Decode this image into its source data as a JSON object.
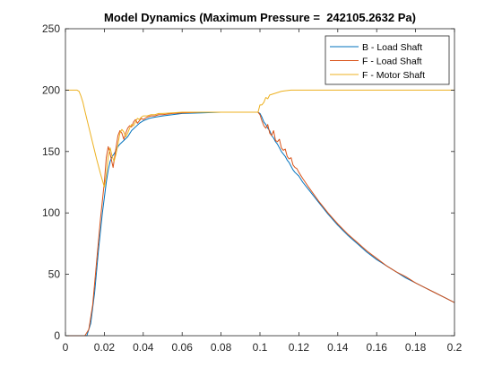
{
  "chart_data": {
    "type": "line",
    "title": "Model Dynamics (Maximum Pressure =  242105.2632 Pa)",
    "xlabel": "",
    "ylabel": "",
    "xlim": [
      0,
      0.2
    ],
    "ylim": [
      0,
      250
    ],
    "xticks": [
      0,
      0.02,
      0.04,
      0.06,
      0.08,
      0.1,
      0.12,
      0.14,
      0.16,
      0.18,
      0.2
    ],
    "xtick_labels": [
      "0",
      "0.02",
      "0.04",
      "0.06",
      "0.08",
      "0.1",
      "0.12",
      "0.14",
      "0.16",
      "0.18",
      "0.2"
    ],
    "yticks": [
      0,
      50,
      100,
      150,
      200,
      250
    ],
    "ytick_labels": [
      "0",
      "50",
      "100",
      "150",
      "200",
      "250"
    ],
    "grid": false,
    "legend": "top-right",
    "series": [
      {
        "name": "B - Load Shaft",
        "color": "#0072BD",
        "x": [
          0,
          0.011,
          0.013,
          0.015,
          0.017,
          0.019,
          0.021,
          0.022,
          0.023,
          0.024,
          0.025,
          0.026,
          0.027,
          0.028,
          0.03,
          0.032,
          0.034,
          0.036,
          0.038,
          0.04,
          0.043,
          0.046,
          0.05,
          0.055,
          0.06,
          0.07,
          0.08,
          0.09,
          0.099,
          0.1,
          0.101,
          0.102,
          0.103,
          0.104,
          0.105,
          0.106,
          0.107,
          0.108,
          0.109,
          0.11,
          0.111,
          0.112,
          0.113,
          0.114,
          0.115,
          0.116,
          0.117,
          0.118,
          0.12,
          0.122,
          0.125,
          0.13,
          0.135,
          0.14,
          0.145,
          0.15,
          0.155,
          0.16,
          0.165,
          0.17,
          0.175,
          0.18,
          0.185,
          0.19,
          0.195,
          0.2
        ],
        "y": [
          0,
          0,
          10,
          35,
          70,
          100,
          125,
          135,
          142,
          146,
          148,
          151,
          154,
          156,
          159,
          162,
          167,
          170,
          173,
          175,
          177,
          178,
          179,
          180,
          181,
          181.5,
          182,
          182,
          182,
          181,
          178,
          174,
          172,
          169,
          167,
          163,
          161,
          158,
          156,
          153,
          150,
          148,
          146,
          143,
          141,
          138,
          135,
          133,
          130,
          125,
          119,
          109,
          99,
          90,
          82,
          75,
          68,
          62,
          57,
          52,
          47,
          43,
          39,
          35,
          31,
          27
        ]
      },
      {
        "name": "F - Load Shaft",
        "color": "#D95319",
        "x": [
          0,
          0.01,
          0.012,
          0.014,
          0.016,
          0.018,
          0.02,
          0.021,
          0.022,
          0.023,
          0.0245,
          0.026,
          0.027,
          0.028,
          0.029,
          0.03,
          0.031,
          0.032,
          0.033,
          0.034,
          0.035,
          0.036,
          0.037,
          0.038,
          0.039,
          0.04,
          0.042,
          0.044,
          0.046,
          0.048,
          0.05,
          0.055,
          0.06,
          0.07,
          0.08,
          0.09,
          0.099,
          0.1,
          0.101,
          0.102,
          0.103,
          0.104,
          0.105,
          0.106,
          0.107,
          0.108,
          0.109,
          0.11,
          0.111,
          0.112,
          0.113,
          0.114,
          0.115,
          0.116,
          0.117,
          0.118,
          0.119,
          0.12,
          0.122,
          0.125,
          0.13,
          0.135,
          0.14,
          0.145,
          0.15,
          0.155,
          0.16,
          0.165,
          0.17,
          0.175,
          0.18,
          0.185,
          0.19,
          0.195,
          0.2
        ],
        "y": [
          0,
          0,
          5,
          25,
          60,
          95,
          125,
          145,
          154,
          148,
          137,
          153,
          163,
          167,
          165,
          160,
          165,
          169,
          171,
          170,
          174,
          176,
          173,
          175,
          177,
          176,
          178,
          179,
          179,
          180,
          180,
          181,
          181.5,
          182,
          182,
          182,
          182,
          180,
          175,
          171,
          169,
          172,
          165,
          163,
          167,
          159,
          158,
          160,
          153,
          151,
          152,
          146,
          144,
          145,
          139,
          137,
          136,
          133,
          128,
          121,
          110,
          100,
          91,
          83,
          76,
          69,
          63,
          57,
          52,
          48,
          43,
          39,
          35,
          31,
          27
        ]
      },
      {
        "name": "F - Motor Shaft",
        "color": "#EDB120",
        "x": [
          0,
          0.006,
          0.007,
          0.008,
          0.009,
          0.01,
          0.012,
          0.014,
          0.016,
          0.018,
          0.02,
          0.021,
          0.022,
          0.023,
          0.024,
          0.025,
          0.026,
          0.027,
          0.028,
          0.029,
          0.03,
          0.031,
          0.032,
          0.033,
          0.034,
          0.035,
          0.036,
          0.037,
          0.038,
          0.039,
          0.04,
          0.042,
          0.044,
          0.046,
          0.048,
          0.05,
          0.055,
          0.06,
          0.07,
          0.08,
          0.09,
          0.099,
          0.1,
          0.101,
          0.102,
          0.103,
          0.104,
          0.105,
          0.107,
          0.109,
          0.111,
          0.113,
          0.116,
          0.12,
          0.125,
          0.13,
          0.14,
          0.15,
          0.16,
          0.18,
          0.2
        ],
        "y": [
          200,
          200,
          199,
          195,
          190,
          183,
          170,
          157,
          144,
          132,
          121,
          131,
          146,
          153,
          146,
          142,
          148,
          156,
          165,
          168,
          166,
          162,
          165,
          169,
          172,
          171,
          174,
          177,
          176,
          178,
          179,
          179,
          180,
          180,
          181,
          181,
          181.5,
          182,
          182,
          182,
          182,
          182,
          188,
          188,
          190,
          194,
          193,
          196,
          197,
          198,
          199,
          199.5,
          200,
          200,
          200,
          200,
          200,
          200,
          200,
          200,
          200
        ]
      }
    ]
  }
}
